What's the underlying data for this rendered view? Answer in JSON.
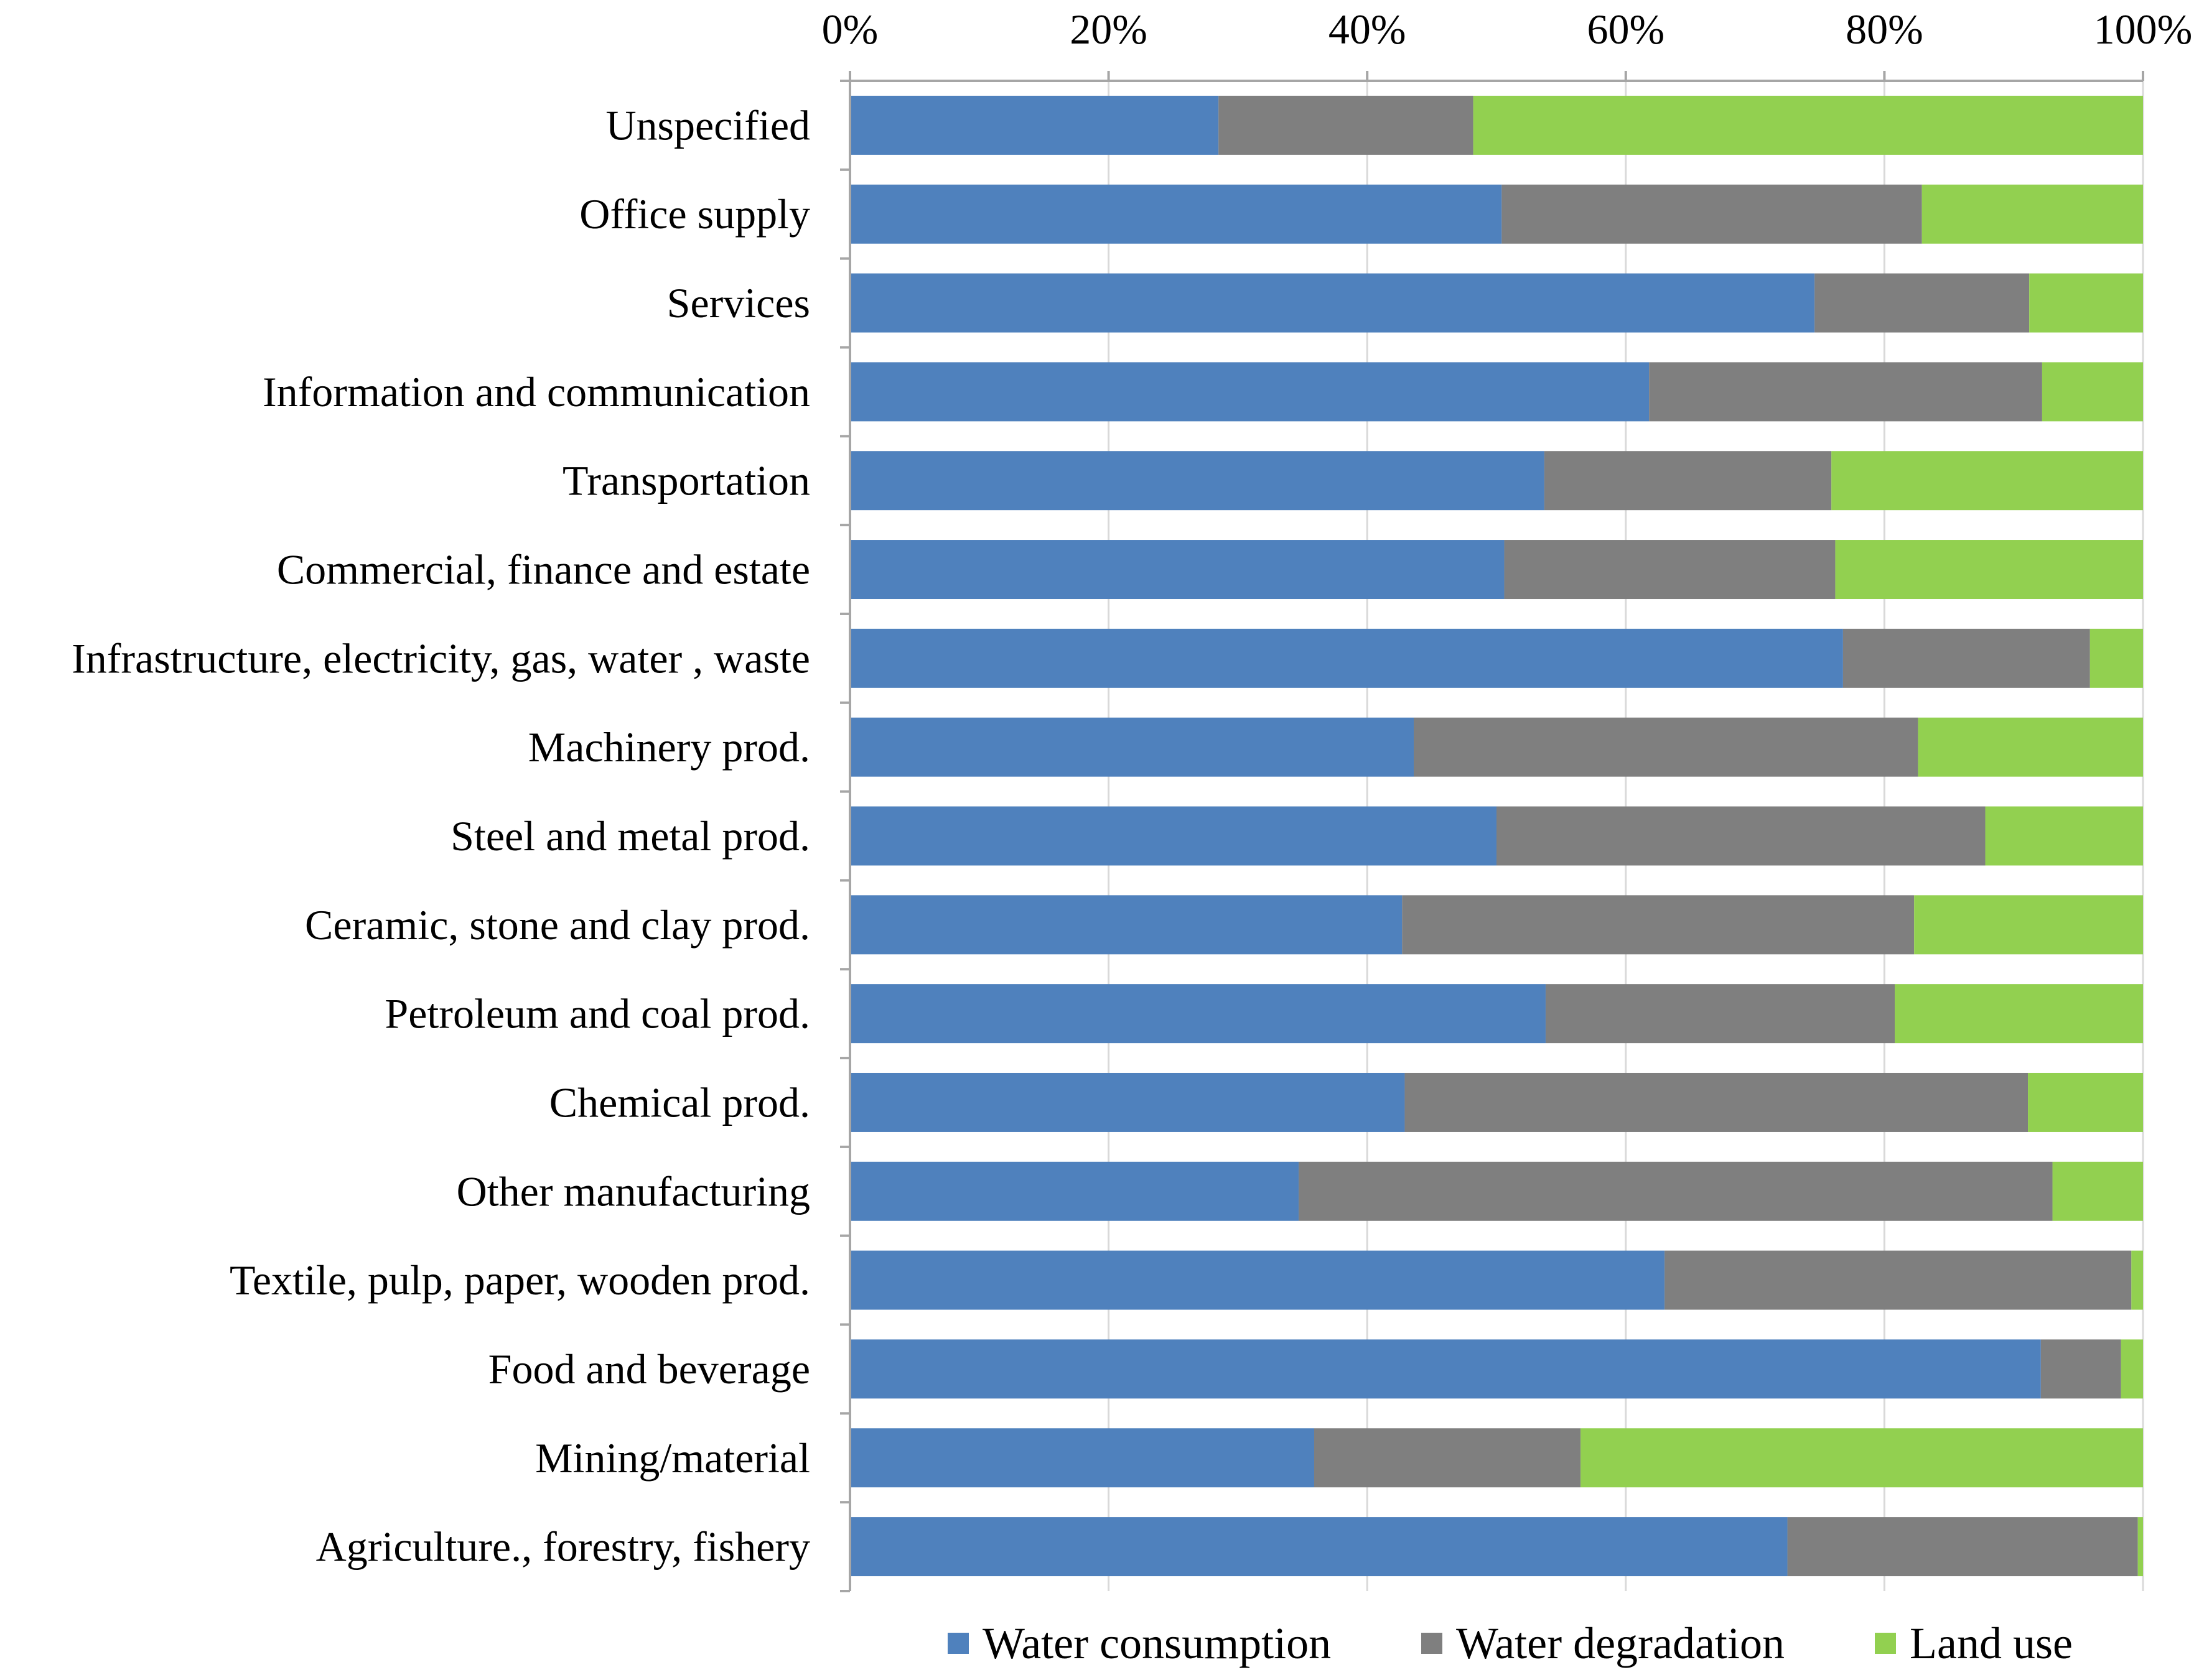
{
  "chart_data": {
    "type": "bar",
    "orientation": "horizontal",
    "stacked": "percent",
    "categories": [
      "Unspecified",
      "Office supply",
      "Services",
      "Information and communication",
      "Transportation",
      "Commercial, finance and estate",
      "Infrastructure, electricity, gas, water , waste",
      "Machinery prod.",
      "Steel and metal prod.",
      "Ceramic, stone and clay prod.",
      "Petroleum and coal prod.",
      "Chemical prod.",
      "Other manufacturing",
      "Textile, pulp, paper, wooden prod.",
      "Food and beverage",
      "Mining/material",
      "Agriculture., forestry, fishery"
    ],
    "series": [
      {
        "name": "Water consumption",
        "color": "#4f81bd",
        "values": [
          28.5,
          50.4,
          74.6,
          61.8,
          53.7,
          50.6,
          76.8,
          43.6,
          50.0,
          42.7,
          53.8,
          42.9,
          34.7,
          63.0,
          92.1,
          35.9,
          72.5
        ]
      },
      {
        "name": "Water degradation",
        "color": "#7f7f7f",
        "values": [
          19.7,
          32.5,
          16.6,
          30.4,
          22.2,
          25.6,
          19.1,
          39.0,
          37.8,
          39.6,
          27.0,
          48.2,
          58.3,
          36.1,
          6.2,
          20.6,
          27.1
        ]
      },
      {
        "name": "Land use",
        "color": "#92d050",
        "values": [
          51.8,
          17.1,
          8.8,
          7.8,
          24.1,
          23.8,
          4.1,
          17.4,
          12.2,
          17.7,
          19.2,
          8.9,
          7.0,
          0.9,
          1.7,
          43.5,
          0.4
        ]
      }
    ],
    "xlim": [
      0,
      100
    ],
    "x_ticks": [
      "0%",
      "20%",
      "40%",
      "60%",
      "80%",
      "100%"
    ],
    "x_axis_position": "top",
    "grid": "vertical",
    "legend": "bottom-right",
    "title": "",
    "xlabel": "",
    "ylabel": ""
  }
}
